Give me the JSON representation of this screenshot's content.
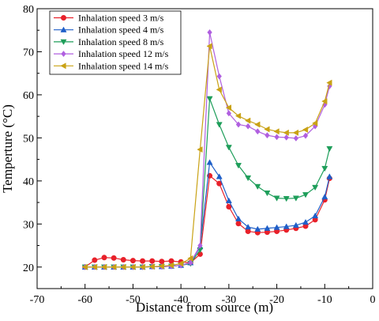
{
  "chart_data": {
    "type": "line",
    "title": "",
    "xlabel": "Distance from source (m)",
    "ylabel": "Temperture (°C)",
    "xlim": [
      -70,
      0
    ],
    "ylim": [
      15,
      80
    ],
    "xticks": [
      -70,
      -60,
      -50,
      -40,
      -30,
      -20,
      -10,
      0
    ],
    "yticks": [
      20,
      30,
      40,
      50,
      60,
      70,
      80
    ],
    "grid": false,
    "legend_position": "top-left",
    "x": [
      -60,
      -58,
      -56,
      -54,
      -52,
      -50,
      -48,
      -46,
      -44,
      -42,
      -40,
      -38,
      -36,
      -34,
      -32,
      -30,
      -28,
      -26,
      -24,
      -22,
      -20,
      -18,
      -16,
      -14,
      -12,
      -10,
      -9
    ],
    "series": [
      {
        "name": "Inhalation speed 3 m/s",
        "color": "#e8212a",
        "marker": "circle",
        "values": [
          20.0,
          21.6,
          22.2,
          22.1,
          21.7,
          21.5,
          21.4,
          21.4,
          21.3,
          21.4,
          21.2,
          21.0,
          23.0,
          41.2,
          39.4,
          34.0,
          30.1,
          28.3,
          28.0,
          28.1,
          28.3,
          28.6,
          29.0,
          29.5,
          31.0,
          35.6,
          40.6
        ]
      },
      {
        "name": "Inhalation speed 4 m/s",
        "color": "#1f5fc8",
        "marker": "triangle-up",
        "values": [
          20.0,
          20.0,
          20.0,
          20.0,
          20.0,
          20.0,
          20.0,
          20.1,
          20.1,
          20.2,
          20.4,
          21.0,
          24.7,
          44.3,
          41.0,
          35.4,
          31.2,
          29.3,
          28.8,
          29.0,
          29.2,
          29.4,
          29.7,
          30.4,
          31.9,
          36.3,
          41.0
        ]
      },
      {
        "name": "Inhalation speed 8 m/s",
        "color": "#1e9e5a",
        "marker": "triangle-down",
        "values": [
          20.0,
          20.0,
          20.0,
          20.0,
          20.0,
          20.0,
          20.0,
          20.1,
          20.1,
          20.2,
          20.4,
          20.8,
          24.0,
          59.1,
          53.1,
          47.8,
          43.6,
          40.7,
          38.7,
          37.2,
          36.0,
          35.9,
          36.0,
          36.8,
          38.5,
          42.9,
          47.5
        ]
      },
      {
        "name": "Inhalation speed 12 m/s",
        "color": "#b05fe0",
        "marker": "diamond",
        "values": [
          20.0,
          20.0,
          20.0,
          20.0,
          20.0,
          20.0,
          20.0,
          20.1,
          20.1,
          20.2,
          20.4,
          21.0,
          25.0,
          74.5,
          64.3,
          55.7,
          53.1,
          52.7,
          51.5,
          50.6,
          50.2,
          50.1,
          49.9,
          50.5,
          52.7,
          57.7,
          62.0
        ]
      },
      {
        "name": "Inhalation speed 14 m/s",
        "color": "#c9a215",
        "marker": "triangle-left",
        "values": [
          20.0,
          20.0,
          20.0,
          20.0,
          20.0,
          20.0,
          20.0,
          20.1,
          20.2,
          20.4,
          20.8,
          22.0,
          47.3,
          71.3,
          61.2,
          57.0,
          55.1,
          54.0,
          53.1,
          52.0,
          51.5,
          51.2,
          51.2,
          51.9,
          53.4,
          58.5,
          62.8
        ]
      }
    ]
  }
}
